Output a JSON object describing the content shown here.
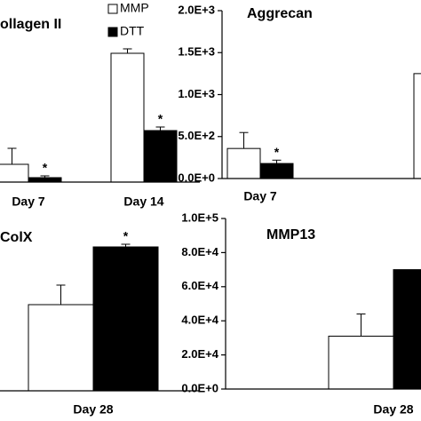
{
  "chart_data": [
    {
      "type": "bar",
      "title": "ollagen II",
      "categories": [
        "Day 7",
        "Day 14"
      ],
      "ylim": [
        0,
        195
      ],
      "legend": true,
      "series": [
        {
          "name": "MMP",
          "color": "#ffffff",
          "values": [
            20,
            145
          ],
          "errors": [
            18,
            5
          ],
          "markers": [
            null,
            null
          ]
        },
        {
          "name": "DTT",
          "color": "#000000",
          "values": [
            5,
            58
          ],
          "errors": [
            2,
            4
          ],
          "markers": [
            "*",
            "*"
          ]
        }
      ]
    },
    {
      "type": "bar",
      "title": "Aggrecan",
      "categories": [
        "Day 7",
        null
      ],
      "ylim": [
        0,
        2000
      ],
      "yticks": [
        {
          "value": 0,
          "label": "0.0E+0"
        },
        {
          "value": 500,
          "label": "5.0E+2"
        },
        {
          "value": 1000,
          "label": "1.0E+3"
        },
        {
          "value": 1500,
          "label": "1.5E+3"
        },
        {
          "value": 2000,
          "label": "2.0E+3"
        }
      ],
      "series": [
        {
          "name": "MMP",
          "color": "#ffffff",
          "values": [
            358,
            1250
          ],
          "errors": [
            190,
            null
          ],
          "markers": [
            null,
            null
          ]
        },
        {
          "name": "DTT",
          "color": "#000000",
          "values": [
            179,
            null
          ],
          "errors": [
            40,
            null
          ],
          "markers": [
            "*",
            null
          ]
        }
      ]
    },
    {
      "type": "bar",
      "title": "ColX",
      "categories": [
        "Day 28"
      ],
      "ylim": [
        0,
        190
      ],
      "series": [
        {
          "name": "MMP",
          "color": "#ffffff",
          "values": [
            97
          ],
          "errors": [
            22
          ],
          "markers": [
            null
          ]
        },
        {
          "name": "DTT",
          "color": "#000000",
          "values": [
            162
          ],
          "errors": [
            3
          ],
          "markers": [
            "*"
          ]
        }
      ]
    },
    {
      "type": "bar",
      "title": "MMP13",
      "categories": [
        "Day 28"
      ],
      "ylim": [
        0,
        100000
      ],
      "yticks": [
        {
          "value": 0,
          "label": "0.0E+0"
        },
        {
          "value": 20000,
          "label": "2.0E+4"
        },
        {
          "value": 40000,
          "label": "4.0E+4"
        },
        {
          "value": 60000,
          "label": "6.0E+4"
        },
        {
          "value": 80000,
          "label": "8.0E+4"
        },
        {
          "value": 100000,
          "label": "1.0E+5"
        }
      ],
      "series": [
        {
          "name": "MMP",
          "color": "#ffffff",
          "values": [
            31000
          ],
          "errors": [
            13000
          ],
          "markers": [
            null
          ]
        },
        {
          "name": "DTT",
          "color": "#000000",
          "values": [
            70000
          ],
          "errors": [
            null
          ],
          "markers": [
            null
          ]
        }
      ]
    }
  ]
}
